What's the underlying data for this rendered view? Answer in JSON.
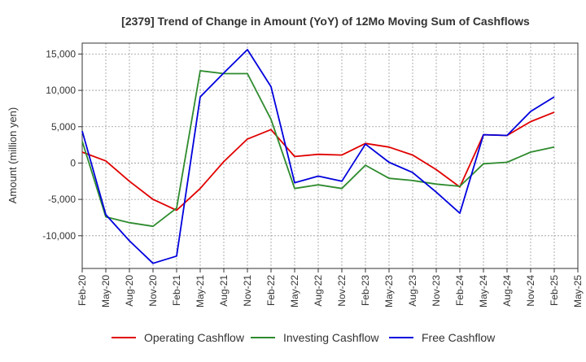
{
  "chart_data": {
    "type": "line",
    "title": "[2379]  Trend of Change in Amount (YoY) of 12Mo Moving Sum of Cashflows",
    "xlabel": "",
    "ylabel": "Amount (million yen)",
    "ylim": [
      -14500,
      16500
    ],
    "yticks": [
      15000,
      10000,
      5000,
      0,
      -5000,
      -10000
    ],
    "ytick_labels": [
      "15,000",
      "10,000",
      "5,000",
      "0",
      "-5,000",
      "-10,000"
    ],
    "grid": true,
    "legend_position": "bottom",
    "x_tick_labels": [
      "Feb-20",
      "May-20",
      "Aug-20",
      "Nov-20",
      "Feb-21",
      "May-21",
      "Aug-21",
      "Nov-21",
      "Feb-22",
      "May-22",
      "Aug-22",
      "Nov-22",
      "Feb-23",
      "May-23",
      "Aug-23",
      "Nov-23",
      "Feb-24",
      "May-24",
      "Aug-24",
      "Nov-24",
      "Feb-25",
      "May-25"
    ],
    "categories": [
      "Feb-20",
      "May-20",
      "Aug-20",
      "Nov-20",
      "Feb-21",
      "May-21",
      "Aug-21",
      "Nov-21",
      "Feb-22",
      "May-22",
      "Aug-22",
      "Nov-22",
      "Feb-23",
      "May-23",
      "Aug-23",
      "Nov-23",
      "Feb-24",
      "May-24",
      "Aug-24",
      "Nov-24",
      "Feb-25"
    ],
    "series": [
      {
        "name": "Operating Cashflow",
        "color": "#e00000",
        "values": [
          1500,
          300,
          -2500,
          -5000,
          -6500,
          -3500,
          200,
          3300,
          4600,
          900,
          1200,
          1100,
          2700,
          2200,
          1100,
          -900,
          -3300,
          3900,
          3800,
          5700,
          7000
        ]
      },
      {
        "name": "Investing Cashflow",
        "color": "#2e8b2e",
        "values": [
          3000,
          -7400,
          -8200,
          -8700,
          -6200,
          12700,
          12300,
          12300,
          6000,
          -3500,
          -3000,
          -3500,
          -300,
          -2100,
          -2400,
          -2900,
          -3200,
          -100,
          100,
          1500,
          2200
        ]
      },
      {
        "name": "Free Cashflow",
        "color": "#0000dd",
        "values": [
          4400,
          -7100,
          -10700,
          -13800,
          -12800,
          9100,
          12400,
          15600,
          10500,
          -2700,
          -1800,
          -2500,
          2600,
          100,
          -1300,
          -4000,
          -6900,
          3900,
          3800,
          7100,
          9100
        ]
      }
    ]
  }
}
